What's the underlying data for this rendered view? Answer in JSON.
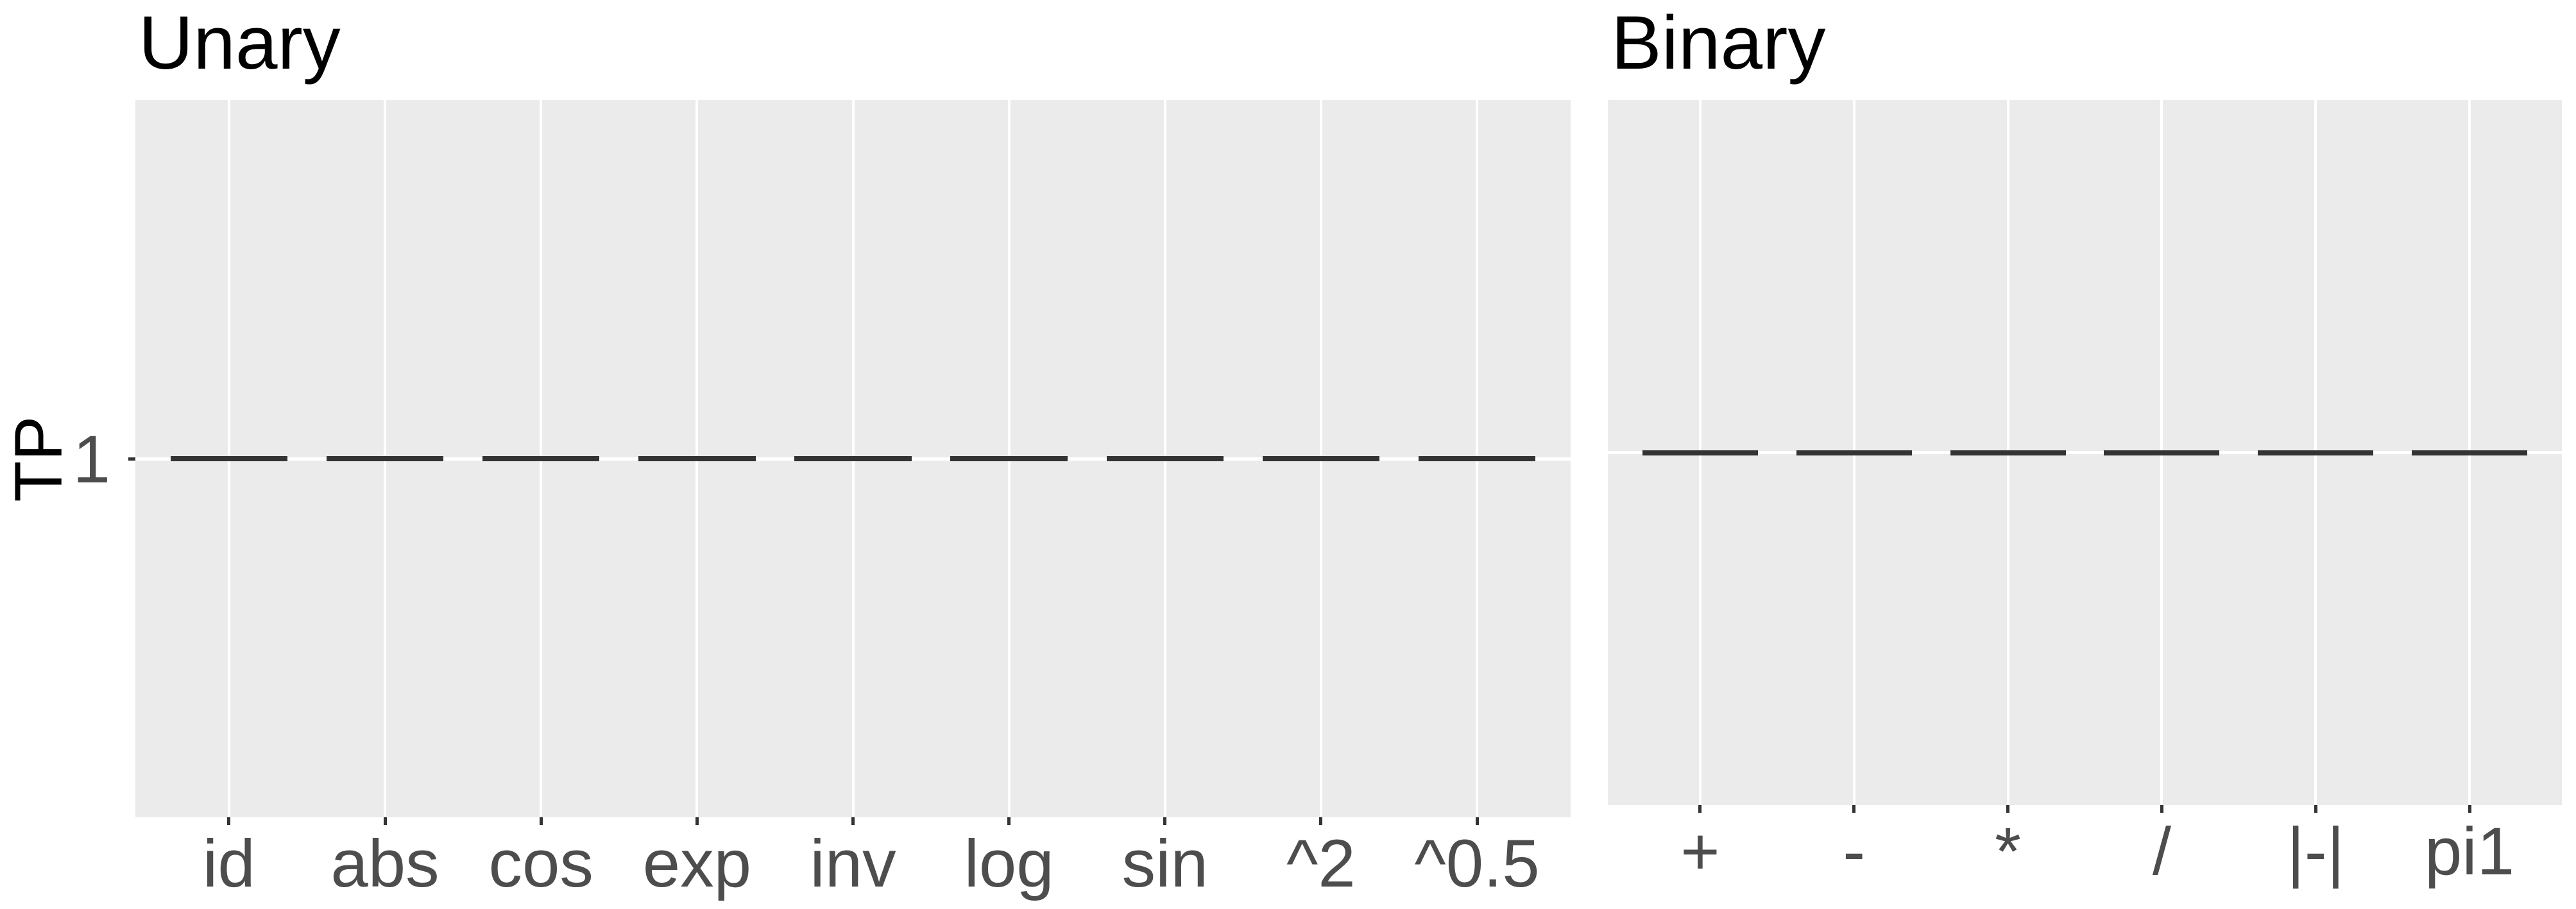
{
  "figure": {
    "background": "#FFFFFF",
    "y_axis": {
      "title": "TP",
      "tick_label": "1"
    },
    "panels": [
      {
        "title": "Unary",
        "categories": [
          "id",
          "abs",
          "cos",
          "exp",
          "inv",
          "log",
          "sin",
          "^2",
          "^0.5"
        ],
        "values": [
          1,
          1,
          1,
          1,
          1,
          1,
          1,
          1,
          1
        ]
      },
      {
        "title": "Binary",
        "categories": [
          "+",
          "-",
          "*",
          "/",
          "|-|",
          "pi1"
        ],
        "values": [
          1,
          1,
          1,
          1,
          1,
          1
        ]
      }
    ],
    "colors": {
      "panel_background": "#EBEBEB",
      "gridline": "#FFFFFF",
      "segment": "#333333",
      "tick_mark": "#333333",
      "axis_text": "#4D4D4D",
      "title_text": "#000000"
    }
  },
  "chart_data": [
    {
      "type": "scatter",
      "marker": "horizontal-dash",
      "title": "Unary",
      "categories": [
        "id",
        "abs",
        "cos",
        "exp",
        "inv",
        "log",
        "sin",
        "^2",
        "^0.5"
      ],
      "values": [
        1,
        1,
        1,
        1,
        1,
        1,
        1,
        1,
        1
      ],
      "xlabel": "",
      "ylabel": "TP",
      "yticks": [
        1
      ],
      "grid": true,
      "legend": false,
      "panel_background": "#EBEBEB"
    },
    {
      "type": "scatter",
      "marker": "horizontal-dash",
      "title": "Binary",
      "categories": [
        "+",
        "-",
        "*",
        "/",
        "|-|",
        "pi1"
      ],
      "values": [
        1,
        1,
        1,
        1,
        1,
        1
      ],
      "xlabel": "",
      "ylabel": "",
      "yticks": [
        1
      ],
      "grid": true,
      "legend": false,
      "panel_background": "#EBEBEB"
    }
  ]
}
